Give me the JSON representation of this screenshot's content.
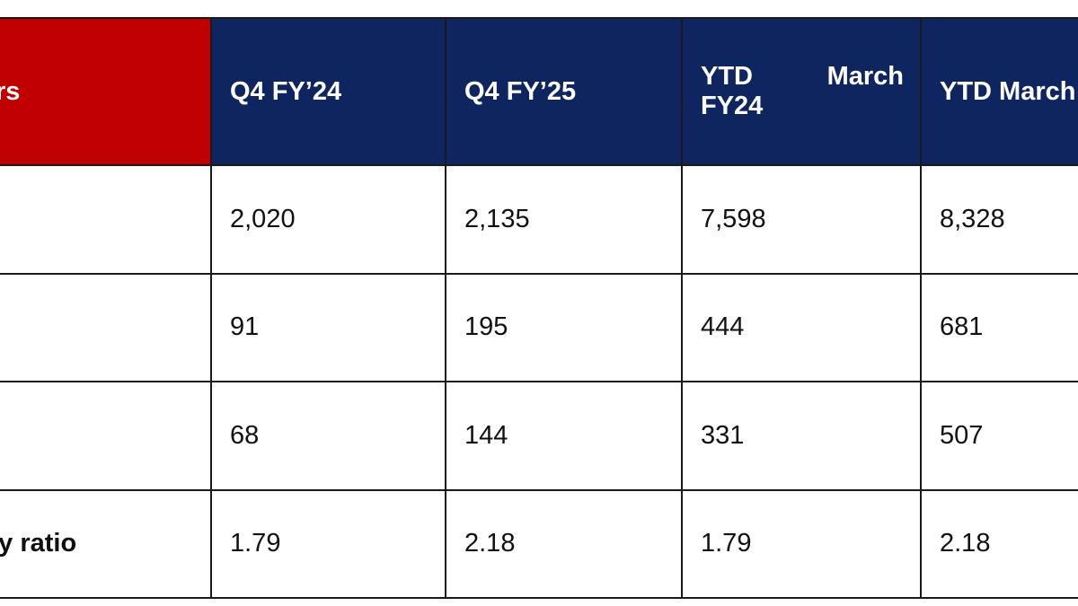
{
  "table": {
    "header": {
      "col0": "Crs",
      "col1": "Q4 FY’24",
      "col2": "Q4 FY’25",
      "col3_line1_left": "YTD",
      "col3_line1_right": "March",
      "col3_line2": "FY24",
      "col4": "YTD March"
    },
    "rows": [
      {
        "label": "",
        "values": [
          "2,020",
          "2,135",
          "7,598",
          "8,328"
        ]
      },
      {
        "label": "",
        "values": [
          "91",
          "195",
          "444",
          "681"
        ]
      },
      {
        "label": "",
        "values": [
          "68",
          "144",
          "331",
          "507"
        ]
      },
      {
        "label": "cy ratio",
        "values": [
          "1.79",
          "2.18",
          "1.79",
          "2.18"
        ]
      }
    ]
  },
  "colors": {
    "header_red": "#c00000",
    "header_blue": "#0f2560",
    "border": "#1a1a1a"
  }
}
